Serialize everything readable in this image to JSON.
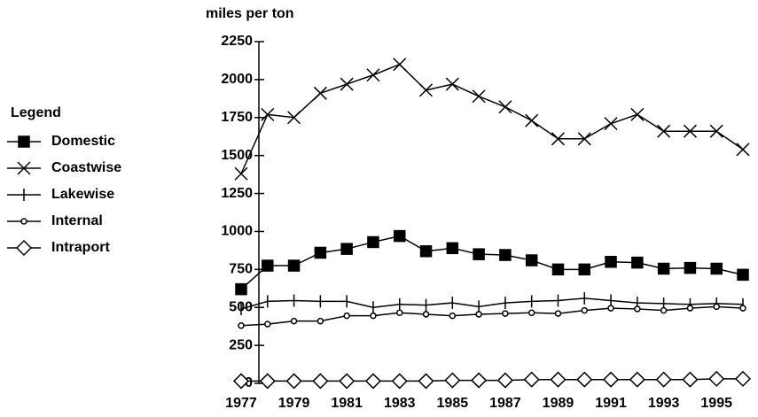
{
  "chart_data": {
    "type": "line",
    "y_axis_label": "miles per ton",
    "legend_title": "Legend",
    "legend_position": "left",
    "categories": [
      "1977",
      null,
      "1979",
      null,
      "1981",
      null,
      "1983",
      null,
      "1985",
      null,
      "1987",
      null,
      "1989",
      null,
      "1991",
      null,
      "1993",
      null,
      "1995",
      null
    ],
    "ylim": [
      0,
      2250
    ],
    "yticks": [
      0,
      250,
      500,
      750,
      1000,
      1250,
      1500,
      1750,
      2000,
      2250
    ],
    "series": [
      {
        "name": "Domestic",
        "color": "#000000",
        "marker": "square",
        "values": [
          620,
          775,
          775,
          860,
          885,
          930,
          970,
          870,
          890,
          850,
          845,
          810,
          750,
          750,
          800,
          795,
          755,
          760,
          755,
          715
        ]
      },
      {
        "name": "Coastwise",
        "color": "#000000",
        "marker": "x",
        "values": [
          1380,
          1770,
          1750,
          1910,
          1970,
          2030,
          2100,
          1930,
          1970,
          1890,
          1820,
          1730,
          1610,
          1610,
          1710,
          1770,
          1660,
          1660,
          1660,
          1540
        ]
      },
      {
        "name": "Lakewise",
        "color": "#000000",
        "marker": "plus",
        "values": [
          490,
          540,
          545,
          540,
          540,
          500,
          520,
          515,
          530,
          505,
          530,
          540,
          545,
          560,
          545,
          530,
          525,
          520,
          525,
          520
        ]
      },
      {
        "name": "Internal",
        "color": "#000000",
        "marker": "circle",
        "values": [
          380,
          390,
          410,
          410,
          445,
          445,
          465,
          455,
          445,
          455,
          460,
          465,
          460,
          480,
          495,
          490,
          480,
          495,
          505,
          495
        ]
      },
      {
        "name": "Intraport",
        "color": "#000000",
        "marker": "diamond",
        "values": [
          15,
          15,
          15,
          15,
          15,
          15,
          15,
          15,
          20,
          20,
          20,
          25,
          25,
          25,
          25,
          25,
          25,
          25,
          30,
          30
        ]
      }
    ]
  }
}
